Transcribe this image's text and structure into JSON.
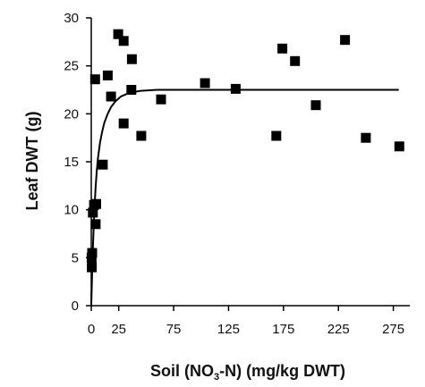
{
  "chart_data": {
    "type": "scatter",
    "xlabel_parts": [
      "Soil (NO",
      "3",
      "-N) (mg/kg DWT)"
    ],
    "ylabel": "Leaf DWT (g)",
    "xlim": [
      0,
      290
    ],
    "ylim": [
      0,
      30
    ],
    "xticks": [
      0,
      25,
      75,
      125,
      175,
      225,
      275
    ],
    "yticks": [
      0,
      5,
      10,
      15,
      20,
      25,
      30
    ],
    "grid": false,
    "points": [
      {
        "x": 0.5,
        "y": 4.0
      },
      {
        "x": 0.3,
        "y": 5.0
      },
      {
        "x": 0.8,
        "y": 5.5
      },
      {
        "x": 1.5,
        "y": 9.7
      },
      {
        "x": 2.5,
        "y": 10.5
      },
      {
        "x": 4.5,
        "y": 10.6
      },
      {
        "x": 4.0,
        "y": 8.5
      },
      {
        "x": 3.5,
        "y": 23.6
      },
      {
        "x": 10.5,
        "y": 14.7
      },
      {
        "x": 15.0,
        "y": 24.0
      },
      {
        "x": 18.0,
        "y": 21.8
      },
      {
        "x": 24.5,
        "y": 28.3
      },
      {
        "x": 29.5,
        "y": 27.6
      },
      {
        "x": 29.5,
        "y": 19.0
      },
      {
        "x": 37.0,
        "y": 25.7
      },
      {
        "x": 36.5,
        "y": 22.5
      },
      {
        "x": 45.5,
        "y": 17.7
      },
      {
        "x": 63.5,
        "y": 21.5
      },
      {
        "x": 103.5,
        "y": 23.2
      },
      {
        "x": 131.5,
        "y": 22.6
      },
      {
        "x": 168.5,
        "y": 17.7
      },
      {
        "x": 174.0,
        "y": 26.8
      },
      {
        "x": 185.5,
        "y": 25.5
      },
      {
        "x": 204.5,
        "y": 20.9
      },
      {
        "x": 231.0,
        "y": 27.7
      },
      {
        "x": 250.0,
        "y": 17.5
      },
      {
        "x": 280.5,
        "y": 16.6
      }
    ],
    "fit_curve": {
      "x": [
        0,
        1,
        2,
        3,
        4,
        5,
        6,
        8,
        10,
        12,
        15,
        18,
        22,
        27,
        35,
        45,
        60,
        80,
        120,
        160,
        200,
        240,
        280
      ],
      "y": [
        0,
        4.2,
        7.8,
        10.4,
        12.4,
        14.0,
        15.3,
        17.0,
        18.2,
        19.1,
        20.0,
        20.7,
        21.3,
        21.8,
        22.2,
        22.4,
        22.5,
        22.5,
        22.5,
        22.5,
        22.5,
        22.5,
        22.5
      ]
    },
    "colors": {
      "points": "#000000",
      "line": "#000000",
      "axis": "#000000"
    }
  }
}
